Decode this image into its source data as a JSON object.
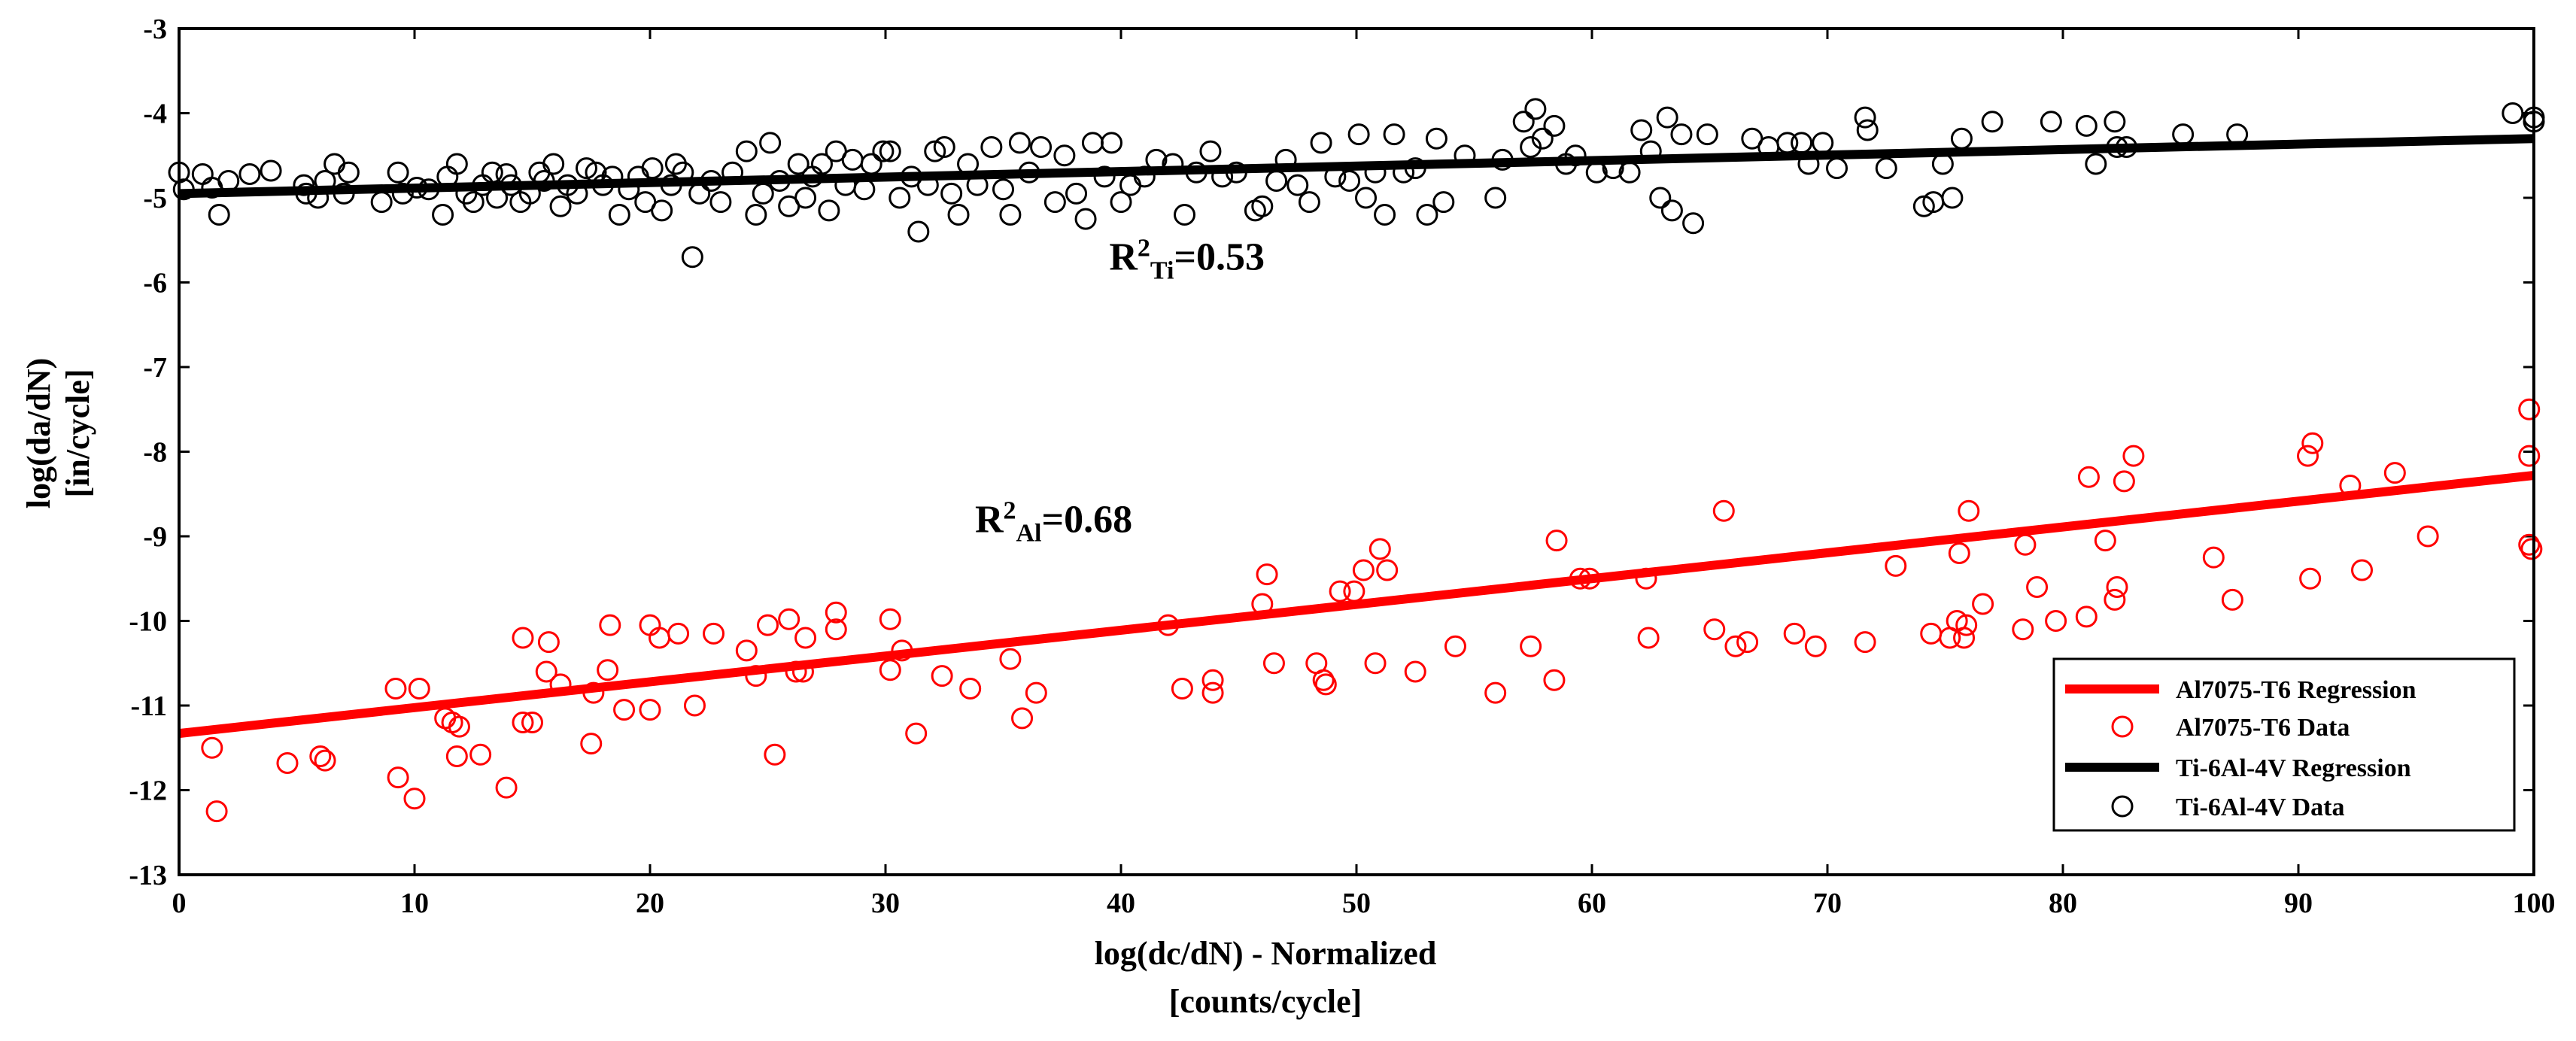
{
  "chart_data": {
    "type": "scatter",
    "title": "",
    "xlabel": "log(dc/dN) - Normalized",
    "xlabel_line2": "[counts/cycle]",
    "ylabel": "log(da/dN)",
    "ylabel_line2": "[in/cycle]",
    "xlim": [
      0,
      100
    ],
    "ylim": [
      -13,
      -3
    ],
    "xticks": [
      0,
      10,
      20,
      30,
      40,
      50,
      60,
      70,
      80,
      90,
      100
    ],
    "yticks": [
      -13,
      -12,
      -11,
      -10,
      -9,
      -8,
      -7,
      -6,
      -5,
      -4,
      -3
    ],
    "grid": false,
    "legend_location": "bottom-right",
    "annotations": [
      {
        "label": "R",
        "sup": "2",
        "sub": "Ti",
        "tail": "=0.53",
        "x": 39.5,
        "y": -5.85
      },
      {
        "label": "R",
        "sup": "2",
        "sub": "Al",
        "tail": "=0.68",
        "x": 33.8,
        "y": -8.95
      }
    ],
    "series": [
      {
        "name": "Al7075-T6 Regression",
        "kind": "line",
        "color": "#ff0000",
        "x": [
          0,
          100
        ],
        "y": [
          -11.33,
          -8.28
        ]
      },
      {
        "name": "Al7075-T6 Data",
        "kind": "scatter",
        "color": "#ff0000",
        "points": [
          [
            1.4,
            -11.5
          ],
          [
            1.6,
            -12.25
          ],
          [
            4.6,
            -11.68
          ],
          [
            6,
            -11.6
          ],
          [
            6.2,
            -11.65
          ],
          [
            9.2,
            -10.8
          ],
          [
            9.3,
            -11.85
          ],
          [
            10,
            -12.1
          ],
          [
            10.2,
            -10.8
          ],
          [
            11.3,
            -11.15
          ],
          [
            11.6,
            -11.2
          ],
          [
            11.8,
            -11.6
          ],
          [
            11.9,
            -11.25
          ],
          [
            12.8,
            -11.58
          ],
          [
            13.9,
            -11.97
          ],
          [
            14.6,
            -10.2
          ],
          [
            14.6,
            -11.2
          ],
          [
            15,
            -11.2
          ],
          [
            15.6,
            -10.6
          ],
          [
            15.7,
            -10.25
          ],
          [
            16.2,
            -10.75
          ],
          [
            17.5,
            -11.45
          ],
          [
            17.6,
            -10.85
          ],
          [
            18.2,
            -10.58
          ],
          [
            18.3,
            -10.05
          ],
          [
            18.9,
            -11.05
          ],
          [
            20,
            -10.05
          ],
          [
            20,
            -11.05
          ],
          [
            20.4,
            -10.2
          ],
          [
            21.2,
            -10.15
          ],
          [
            21.9,
            -11
          ],
          [
            22.7,
            -10.15
          ],
          [
            24.1,
            -10.35
          ],
          [
            24.5,
            -10.65
          ],
          [
            25,
            -10.05
          ],
          [
            25.3,
            -11.58
          ],
          [
            25.9,
            -9.98
          ],
          [
            26.2,
            -10.6
          ],
          [
            26.5,
            -10.6
          ],
          [
            26.6,
            -10.2
          ],
          [
            27.9,
            -9.9
          ],
          [
            27.9,
            -10.1
          ],
          [
            30.2,
            -9.98
          ],
          [
            30.2,
            -10.58
          ],
          [
            30.7,
            -10.35
          ],
          [
            31.3,
            -11.33
          ],
          [
            32.4,
            -10.65
          ],
          [
            33.6,
            -10.8
          ],
          [
            35.3,
            -10.45
          ],
          [
            35.8,
            -11.15
          ],
          [
            36.4,
            -10.85
          ],
          [
            42,
            -10.05
          ],
          [
            42.6,
            -10.8
          ],
          [
            43.9,
            -10.7
          ],
          [
            43.9,
            -10.85
          ],
          [
            46,
            -9.8
          ],
          [
            46.2,
            -9.45
          ],
          [
            46.5,
            -10.5
          ],
          [
            48.3,
            -10.5
          ],
          [
            48.6,
            -10.7
          ],
          [
            48.7,
            -10.75
          ],
          [
            49.3,
            -9.65
          ],
          [
            49.9,
            -9.65
          ],
          [
            50.3,
            -9.4
          ],
          [
            50.8,
            -10.5
          ],
          [
            51,
            -9.15
          ],
          [
            51.3,
            -9.4
          ],
          [
            52.5,
            -10.6
          ],
          [
            54.2,
            -10.3
          ],
          [
            55.9,
            -10.85
          ],
          [
            57.4,
            -10.3
          ],
          [
            58.4,
            -10.7
          ],
          [
            58.5,
            -9.05
          ],
          [
            59.5,
            -9.5
          ],
          [
            59.9,
            -9.5
          ],
          [
            62.3,
            -9.5
          ],
          [
            62.4,
            -10.2
          ],
          [
            65.2,
            -10.1
          ],
          [
            65.6,
            -8.7
          ],
          [
            66.1,
            -10.3
          ],
          [
            66.6,
            -10.25
          ],
          [
            68.6,
            -10.15
          ],
          [
            69.5,
            -10.3
          ],
          [
            71.6,
            -10.25
          ],
          [
            72.9,
            -9.35
          ],
          [
            74.4,
            -10.15
          ],
          [
            75.2,
            -10.2
          ],
          [
            75.5,
            -10
          ],
          [
            75.6,
            -9.2
          ],
          [
            75.8,
            -10.2
          ],
          [
            75.9,
            -10.05
          ],
          [
            76,
            -8.7
          ],
          [
            76.6,
            -9.8
          ],
          [
            78.3,
            -10.1
          ],
          [
            78.4,
            -9.1
          ],
          [
            78.9,
            -9.6
          ],
          [
            79.7,
            -10
          ],
          [
            81,
            -9.95
          ],
          [
            81.1,
            -8.3
          ],
          [
            81.8,
            -9.05
          ],
          [
            82.2,
            -9.75
          ],
          [
            82.3,
            -9.6
          ],
          [
            82.6,
            -8.35
          ],
          [
            83,
            -8.05
          ],
          [
            86.4,
            -9.25
          ],
          [
            87.2,
            -9.75
          ],
          [
            90.4,
            -8.05
          ],
          [
            90.5,
            -9.5
          ],
          [
            90.6,
            -7.9
          ],
          [
            92.2,
            -8.4
          ],
          [
            92.7,
            -9.4
          ],
          [
            94.1,
            -8.25
          ],
          [
            95.5,
            -9
          ],
          [
            99.8,
            -7.5
          ],
          [
            99.8,
            -8.05
          ],
          [
            99.8,
            -9.1
          ],
          [
            99.9,
            -9.15
          ]
        ]
      },
      {
        "name": "Ti-6Al-4V Regression",
        "kind": "line",
        "color": "#000000",
        "x": [
          0,
          100
        ],
        "y": [
          -4.95,
          -4.3
        ]
      },
      {
        "name": "Ti-6Al-4V Data",
        "kind": "scatter",
        "color": "#000000",
        "points": [
          [
            0,
            -4.7
          ],
          [
            0.2,
            -4.9
          ],
          [
            1,
            -4.72
          ],
          [
            1.4,
            -4.88
          ],
          [
            1.7,
            -5.2
          ],
          [
            2.1,
            -4.8
          ],
          [
            3,
            -4.72
          ],
          [
            3.9,
            -4.68
          ],
          [
            5.3,
            -4.85
          ],
          [
            5.4,
            -4.95
          ],
          [
            5.9,
            -5
          ],
          [
            6.2,
            -4.8
          ],
          [
            6.6,
            -4.6
          ],
          [
            7,
            -4.95
          ],
          [
            7.2,
            -4.7
          ],
          [
            8.6,
            -5.05
          ],
          [
            9.3,
            -4.7
          ],
          [
            9.5,
            -4.95
          ],
          [
            10.1,
            -4.88
          ],
          [
            10.6,
            -4.9
          ],
          [
            11.2,
            -5.2
          ],
          [
            11.4,
            -4.75
          ],
          [
            11.8,
            -4.6
          ],
          [
            12.2,
            -4.95
          ],
          [
            12.5,
            -5.05
          ],
          [
            12.9,
            -4.85
          ],
          [
            13.3,
            -4.7
          ],
          [
            13.5,
            -5
          ],
          [
            13.9,
            -4.72
          ],
          [
            14.1,
            -4.85
          ],
          [
            14.5,
            -5.05
          ],
          [
            14.9,
            -4.95
          ],
          [
            15.3,
            -4.7
          ],
          [
            15.5,
            -4.8
          ],
          [
            15.9,
            -4.6
          ],
          [
            16.2,
            -5.1
          ],
          [
            16.5,
            -4.85
          ],
          [
            16.9,
            -4.95
          ],
          [
            17.3,
            -4.65
          ],
          [
            17.7,
            -4.7
          ],
          [
            18,
            -4.85
          ],
          [
            18.4,
            -4.75
          ],
          [
            18.7,
            -5.2
          ],
          [
            19.1,
            -4.9
          ],
          [
            19.5,
            -4.75
          ],
          [
            19.8,
            -5.05
          ],
          [
            20.1,
            -4.65
          ],
          [
            20.5,
            -5.15
          ],
          [
            20.9,
            -4.85
          ],
          [
            21.1,
            -4.6
          ],
          [
            21.4,
            -4.7
          ],
          [
            21.8,
            -5.7
          ],
          [
            22.1,
            -4.95
          ],
          [
            22.6,
            -4.8
          ],
          [
            23,
            -5.05
          ],
          [
            23.5,
            -4.7
          ],
          [
            24.1,
            -4.45
          ],
          [
            24.5,
            -5.2
          ],
          [
            24.8,
            -4.95
          ],
          [
            25.1,
            -4.35
          ],
          [
            25.5,
            -4.8
          ],
          [
            25.9,
            -5.1
          ],
          [
            26.3,
            -4.6
          ],
          [
            26.6,
            -5
          ],
          [
            26.9,
            -4.75
          ],
          [
            27.3,
            -4.6
          ],
          [
            27.6,
            -5.15
          ],
          [
            27.9,
            -4.45
          ],
          [
            28.3,
            -4.85
          ],
          [
            28.6,
            -4.55
          ],
          [
            29.1,
            -4.9
          ],
          [
            29.4,
            -4.6
          ],
          [
            29.9,
            -4.45
          ],
          [
            30.2,
            -4.45
          ],
          [
            30.6,
            -5
          ],
          [
            31.1,
            -4.75
          ],
          [
            31.4,
            -5.4
          ],
          [
            31.8,
            -4.85
          ],
          [
            32.1,
            -4.45
          ],
          [
            32.5,
            -4.4
          ],
          [
            32.8,
            -4.95
          ],
          [
            33.1,
            -5.2
          ],
          [
            33.5,
            -4.6
          ],
          [
            33.9,
            -4.85
          ],
          [
            34.5,
            -4.4
          ],
          [
            35,
            -4.9
          ],
          [
            35.3,
            -5.2
          ],
          [
            35.7,
            -4.35
          ],
          [
            36.1,
            -4.7
          ],
          [
            36.6,
            -4.4
          ],
          [
            37.2,
            -5.05
          ],
          [
            37.6,
            -4.5
          ],
          [
            38.1,
            -4.95
          ],
          [
            38.5,
            -5.25
          ],
          [
            38.8,
            -4.35
          ],
          [
            39.3,
            -4.75
          ],
          [
            39.6,
            -4.35
          ],
          [
            40,
            -5.05
          ],
          [
            40.4,
            -4.85
          ],
          [
            41,
            -4.75
          ],
          [
            41.5,
            -4.55
          ],
          [
            42.2,
            -4.6
          ],
          [
            42.7,
            -5.2
          ],
          [
            43.2,
            -4.7
          ],
          [
            43.8,
            -4.45
          ],
          [
            44.3,
            -4.75
          ],
          [
            44.9,
            -4.7
          ],
          [
            45.7,
            -5.15
          ],
          [
            46,
            -5.1
          ],
          [
            46.6,
            -4.8
          ],
          [
            47,
            -4.55
          ],
          [
            47.5,
            -4.85
          ],
          [
            48,
            -5.05
          ],
          [
            48.5,
            -4.35
          ],
          [
            49.1,
            -4.75
          ],
          [
            49.7,
            -4.8
          ],
          [
            50.1,
            -4.25
          ],
          [
            50.4,
            -5
          ],
          [
            50.8,
            -4.7
          ],
          [
            51.2,
            -5.2
          ],
          [
            51.6,
            -4.25
          ],
          [
            52,
            -4.7
          ],
          [
            52.5,
            -4.65
          ],
          [
            53,
            -5.2
          ],
          [
            53.4,
            -4.3
          ],
          [
            53.7,
            -5.05
          ],
          [
            54.6,
            -4.5
          ],
          [
            55.9,
            -5
          ],
          [
            56.2,
            -4.55
          ],
          [
            57.1,
            -4.1
          ],
          [
            57.4,
            -4.4
          ],
          [
            57.6,
            -3.95
          ],
          [
            57.9,
            -4.3
          ],
          [
            58.4,
            -4.15
          ],
          [
            58.9,
            -4.6
          ],
          [
            59.3,
            -4.5
          ],
          [
            60.2,
            -4.7
          ],
          [
            60.9,
            -4.65
          ],
          [
            61.6,
            -4.7
          ],
          [
            62.1,
            -4.2
          ],
          [
            62.5,
            -4.45
          ],
          [
            62.9,
            -5
          ],
          [
            63.2,
            -4.05
          ],
          [
            63.4,
            -5.15
          ],
          [
            63.8,
            -4.25
          ],
          [
            64.3,
            -5.3
          ],
          [
            64.9,
            -4.25
          ],
          [
            66.8,
            -4.3
          ],
          [
            67.5,
            -4.4
          ],
          [
            68.3,
            -4.35
          ],
          [
            68.9,
            -4.35
          ],
          [
            69.2,
            -4.6
          ],
          [
            69.8,
            -4.35
          ],
          [
            70.4,
            -4.65
          ],
          [
            71.6,
            -4.05
          ],
          [
            71.7,
            -4.2
          ],
          [
            72.5,
            -4.65
          ],
          [
            74.1,
            -5.1
          ],
          [
            74.5,
            -5.05
          ],
          [
            74.9,
            -4.6
          ],
          [
            75.3,
            -5
          ],
          [
            75.7,
            -4.3
          ],
          [
            77,
            -4.1
          ],
          [
            79.5,
            -4.1
          ],
          [
            81,
            -4.15
          ],
          [
            81.4,
            -4.6
          ],
          [
            82.2,
            -4.1
          ],
          [
            82.3,
            -4.4
          ],
          [
            82.7,
            -4.4
          ],
          [
            85.1,
            -4.25
          ],
          [
            87.4,
            -4.25
          ],
          [
            99.1,
            -4
          ],
          [
            100,
            -4.05
          ],
          [
            100,
            -4.1
          ]
        ]
      }
    ]
  }
}
